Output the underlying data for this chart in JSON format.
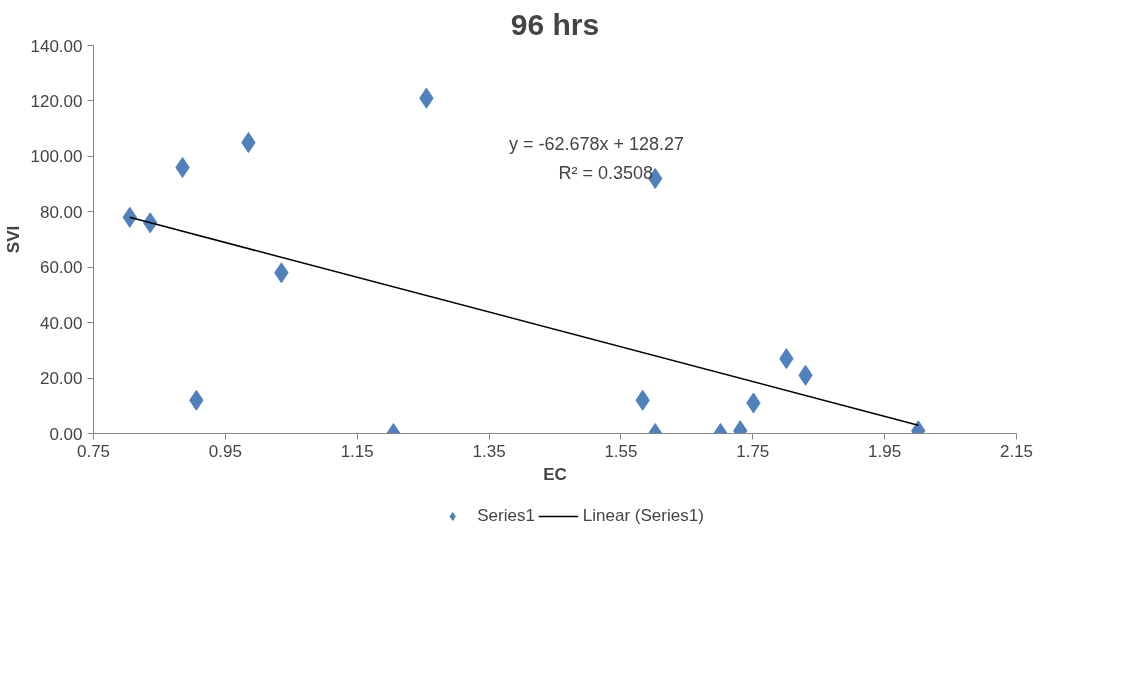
{
  "chart_data": {
    "type": "scatter",
    "title": "96 hrs",
    "xlabel": "EC",
    "ylabel": "SVI",
    "series": [
      {
        "name": "Series1",
        "color": "#4f81bd",
        "marker": "diamond",
        "x": [
          0.805,
          0.836,
          0.885,
          0.906,
          0.985,
          1.035,
          1.205,
          1.255,
          1.583,
          1.602,
          1.602,
          1.701,
          1.731,
          1.751,
          1.801,
          1.83,
          2.001
        ],
        "values": [
          78,
          76,
          96,
          12,
          105,
          58,
          0,
          121,
          12,
          0,
          92,
          0,
          1,
          11,
          27,
          21,
          1
        ]
      },
      {
        "name": "Linear (Series1)",
        "type": "line",
        "color": "#000000",
        "marker": "none",
        "line_style": "solid",
        "x": [
          0.805,
          2.001
        ],
        "values": [
          78,
          3
        ]
      }
    ],
    "annotations": [
      "y = -62.678x + 128.27",
      "R² = 0.3508"
    ],
    "xlim": [
      0.75,
      2.15
    ],
    "xticks": [
      0.75,
      0.95,
      1.15,
      1.35,
      1.55,
      1.75,
      1.95,
      2.15
    ],
    "ylim": [
      0,
      140
    ],
    "yticks": [
      {
        "value": 0,
        "label": "0.00"
      },
      {
        "value": 20,
        "label": "20.00"
      },
      {
        "value": 40,
        "label": "40.00"
      },
      {
        "value": 60,
        "label": "60.00"
      },
      {
        "value": 80,
        "label": "80.00"
      },
      {
        "value": 100,
        "label": "100.00"
      },
      {
        "value": 120,
        "label": "120.00"
      },
      {
        "value": 140,
        "label": "140.00"
      }
    ],
    "grid": false,
    "legend": "bottom"
  }
}
